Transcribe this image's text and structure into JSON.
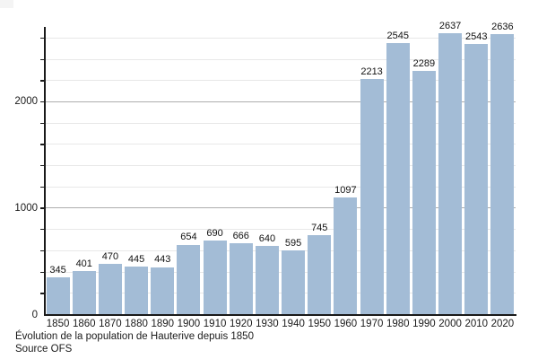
{
  "chart_data": {
    "type": "bar",
    "title": "Évolution de la population de Hauterive depuis 1850",
    "source": "Source OFS",
    "categories": [
      "1850",
      "1860",
      "1870",
      "1880",
      "1890",
      "1900",
      "1910",
      "1920",
      "1930",
      "1940",
      "1950",
      "1960",
      "1970",
      "1980",
      "1990",
      "2000",
      "2010",
      "2020"
    ],
    "values": [
      345,
      401,
      470,
      445,
      443,
      654,
      690,
      666,
      640,
      595,
      745,
      1097,
      2213,
      2545,
      2289,
      2637,
      2543,
      2636
    ],
    "xlabel": "",
    "ylabel": "",
    "ylim": [
      0,
      2700
    ],
    "ytick_labels": [
      0,
      1000,
      2000
    ],
    "grid_step": 200,
    "major_gridlines": [
      1000,
      2000
    ],
    "grid_on": true,
    "legend": null,
    "colors": {
      "bar_fill": "#a3bcd6",
      "grid_minor": "#e8e8e8",
      "grid_major": "#aeaeae",
      "axis": "#1a1a1a",
      "text": "#1a1a1a",
      "background": "#ffffff"
    }
  }
}
